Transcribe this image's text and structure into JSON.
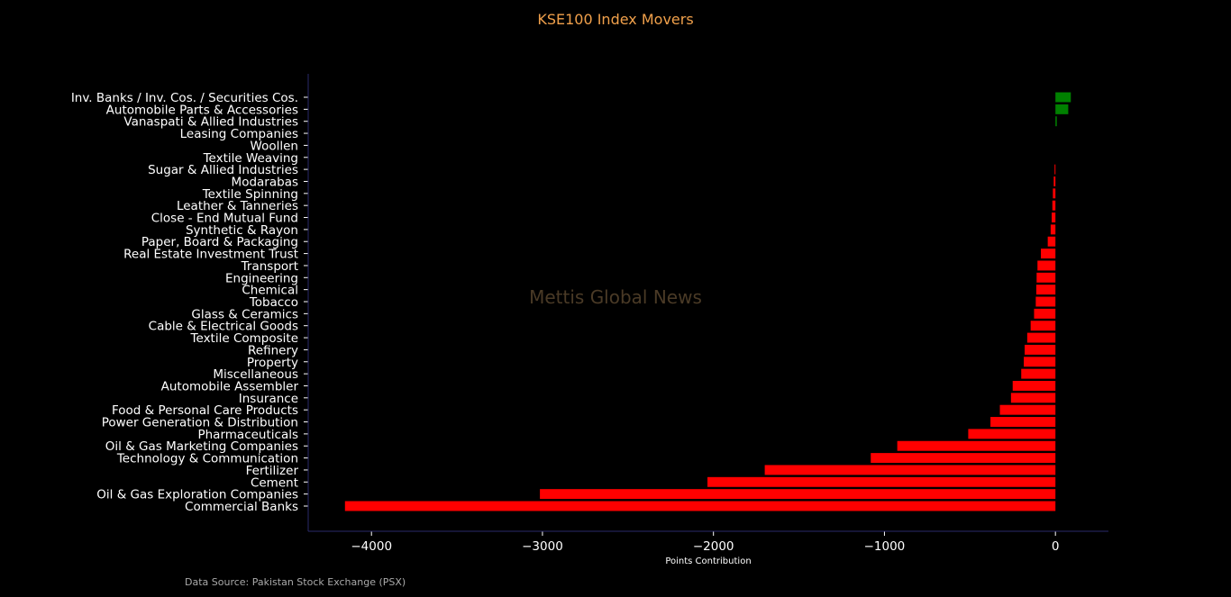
{
  "chart_data": {
    "type": "bar",
    "orientation": "horizontal",
    "title": "KSE100 Index Movers",
    "xlabel": "Points Contribution",
    "ylabel": "",
    "xlim": [
      -4370,
      310
    ],
    "xticks": [
      -4000,
      -3000,
      -2000,
      -1000,
      0
    ],
    "xtick_labels": [
      "−4000",
      "−3000",
      "−2000",
      "−1000",
      "0"
    ],
    "positive_color": "#008000",
    "negative_color": "#ff0000",
    "categories": [
      "Inv. Banks / Inv. Cos. / Securities Cos.",
      "Automobile Parts & Accessories",
      "Vanaspati & Allied Industries",
      "Leasing Companies",
      "Woollen",
      "Textile Weaving",
      "Sugar & Allied Industries",
      "Modarabas",
      "Textile Spinning",
      "Leather & Tanneries",
      "Close - End Mutual Fund",
      "Synthetic & Rayon",
      "Paper, Board & Packaging",
      "Real Estate Investment Trust",
      "Transport",
      "Engineering",
      "Chemical",
      "Tobacco",
      "Glass & Ceramics",
      "Cable & Electrical Goods",
      "Textile Composite",
      "Refinery",
      "Property",
      "Miscellaneous",
      "Automobile Assembler",
      "Insurance",
      "Food & Personal Care Products",
      "Power Generation & Distribution",
      "Pharmaceuticals",
      "Oil & Gas Marketing Companies",
      "Technology & Communication",
      "Fertilizer",
      "Cement",
      "Oil & Gas Exploration Companies",
      "Commercial Banks"
    ],
    "values": [
      90,
      75,
      8,
      0,
      0,
      0,
      -5,
      -10,
      -15,
      -18,
      -22,
      -28,
      -45,
      -85,
      -105,
      -110,
      -112,
      -115,
      -125,
      -145,
      -165,
      -180,
      -185,
      -200,
      -250,
      -260,
      -325,
      -380,
      -510,
      -925,
      -1080,
      -1700,
      -2035,
      -3015,
      -4155
    ]
  },
  "watermark": "Mettis Global News",
  "source": "Data Source: Pakistan Stock Exchange (PSX)"
}
